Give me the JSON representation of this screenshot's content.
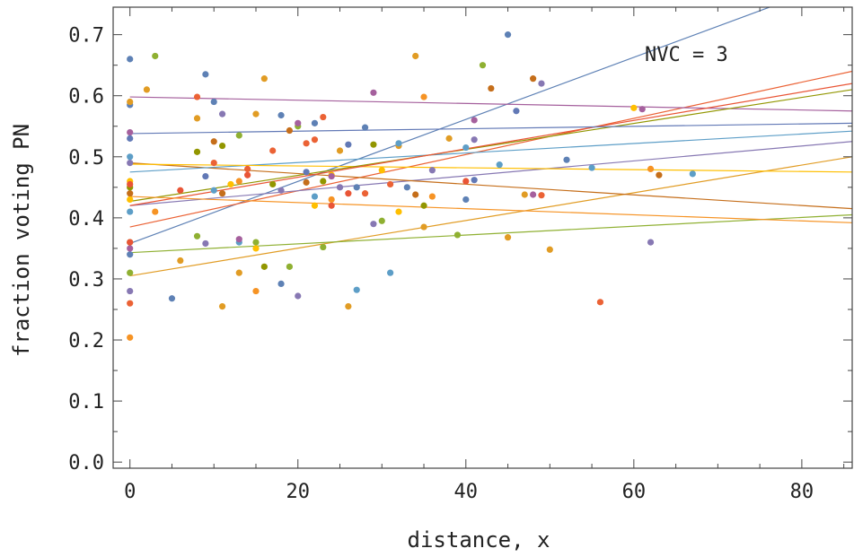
{
  "chart_data": {
    "type": "scatter",
    "xlabel": "distance, x",
    "ylabel": "fraction voting PN",
    "annotation": "NVC = 3",
    "xlim": [
      -2,
      86
    ],
    "ylim": [
      -0.01,
      0.745
    ],
    "x_ticks": [
      0,
      20,
      40,
      60,
      80
    ],
    "y_ticks": [
      0.0,
      0.1,
      0.2,
      0.3,
      0.4,
      0.5,
      0.6,
      0.7
    ],
    "y_tick_labels": [
      "0.0",
      "0.1",
      "0.2",
      "0.3",
      "0.4",
      "0.5",
      "0.6",
      "0.7"
    ],
    "grid": false,
    "series": [
      {
        "color": "#5e81b5",
        "points": [
          [
            0,
            0.66
          ],
          [
            0,
            0.585
          ],
          [
            9,
            0.635
          ],
          [
            10,
            0.59
          ],
          [
            18,
            0.568
          ],
          [
            22,
            0.555
          ],
          [
            27,
            0.45
          ],
          [
            33,
            0.45
          ],
          [
            45,
            0.7
          ],
          [
            52,
            0.495
          ],
          [
            5,
            0.268
          ],
          [
            18,
            0.292
          ],
          [
            0,
            0.34
          ],
          [
            28,
            0.548
          ],
          [
            40,
            0.43
          ]
        ],
        "trend": [
          [
            0,
            0.358
          ],
          [
            86,
            0.795
          ]
        ]
      },
      {
        "color": "#e19c24",
        "points": [
          [
            0,
            0.59
          ],
          [
            2,
            0.61
          ],
          [
            16,
            0.628
          ],
          [
            8,
            0.563
          ],
          [
            15,
            0.57
          ],
          [
            25,
            0.51
          ],
          [
            32,
            0.518
          ],
          [
            34,
            0.665
          ],
          [
            38,
            0.53
          ],
          [
            47,
            0.438
          ],
          [
            50,
            0.348
          ],
          [
            6,
            0.33
          ],
          [
            11,
            0.255
          ],
          [
            26,
            0.255
          ],
          [
            13,
            0.31
          ],
          [
            35,
            0.385
          ],
          [
            45,
            0.368
          ]
        ],
        "trend": [
          [
            0,
            0.305
          ],
          [
            86,
            0.5
          ]
        ]
      },
      {
        "color": "#8fb032",
        "points": [
          [
            3,
            0.665
          ],
          [
            13,
            0.535
          ],
          [
            20,
            0.55
          ],
          [
            30,
            0.395
          ],
          [
            39,
            0.372
          ],
          [
            42,
            0.65
          ],
          [
            0,
            0.31
          ],
          [
            8,
            0.37
          ],
          [
            15,
            0.36
          ],
          [
            19,
            0.32
          ],
          [
            23,
            0.352
          ]
        ],
        "trend": [
          [
            0,
            0.343
          ],
          [
            86,
            0.405
          ]
        ]
      },
      {
        "color": "#eb6235",
        "points": [
          [
            8,
            0.598
          ],
          [
            21,
            0.522
          ],
          [
            22,
            0.528
          ],
          [
            23,
            0.565
          ],
          [
            10,
            0.49
          ],
          [
            17,
            0.51
          ],
          [
            0,
            0.26
          ],
          [
            14,
            0.48
          ],
          [
            28,
            0.44
          ],
          [
            31,
            0.455
          ],
          [
            56,
            0.262
          ],
          [
            49,
            0.437
          ]
        ],
        "trend": [
          [
            0,
            0.385
          ],
          [
            86,
            0.64
          ]
        ]
      },
      {
        "color": "#8778b3",
        "points": [
          [
            0,
            0.49
          ],
          [
            11,
            0.57
          ],
          [
            20,
            0.272
          ],
          [
            29,
            0.39
          ],
          [
            36,
            0.478
          ],
          [
            0,
            0.28
          ],
          [
            9,
            0.358
          ],
          [
            18,
            0.445
          ],
          [
            25,
            0.45
          ],
          [
            41,
            0.528
          ],
          [
            49,
            0.62
          ],
          [
            62,
            0.36
          ]
        ],
        "trend": [
          [
            0,
            0.42
          ],
          [
            86,
            0.525
          ]
        ]
      },
      {
        "color": "#c56e1a",
        "points": [
          [
            10,
            0.525
          ],
          [
            19,
            0.543
          ],
          [
            11,
            0.44
          ],
          [
            21,
            0.458
          ],
          [
            34,
            0.438
          ],
          [
            0,
            0.44
          ],
          [
            48,
            0.628
          ],
          [
            63,
            0.47
          ],
          [
            43,
            0.612
          ]
        ],
        "trend": [
          [
            0,
            0.49
          ],
          [
            86,
            0.415
          ]
        ]
      },
      {
        "color": "#5d9ec7",
        "points": [
          [
            0,
            0.5
          ],
          [
            10,
            0.445
          ],
          [
            13,
            0.36
          ],
          [
            22,
            0.435
          ],
          [
            32,
            0.522
          ],
          [
            40,
            0.515
          ],
          [
            55,
            0.482
          ],
          [
            67,
            0.472
          ],
          [
            0,
            0.41
          ],
          [
            27,
            0.282
          ],
          [
            31,
            0.31
          ],
          [
            44,
            0.487
          ]
        ],
        "trend": [
          [
            0,
            0.475
          ],
          [
            86,
            0.542
          ]
        ]
      },
      {
        "color": "#ffbf00",
        "points": [
          [
            0,
            0.46
          ],
          [
            12,
            0.455
          ],
          [
            22,
            0.42
          ],
          [
            32,
            0.41
          ],
          [
            0,
            0.43
          ],
          [
            15,
            0.35
          ],
          [
            24,
            0.47
          ],
          [
            60,
            0.58
          ],
          [
            30,
            0.478
          ]
        ],
        "trend": [
          [
            0,
            0.488
          ],
          [
            86,
            0.475
          ]
        ]
      },
      {
        "color": "#a5609d",
        "points": [
          [
            0,
            0.54
          ],
          [
            20,
            0.555
          ],
          [
            29,
            0.605
          ],
          [
            41,
            0.56
          ],
          [
            61,
            0.578
          ],
          [
            0,
            0.35
          ],
          [
            13,
            0.365
          ],
          [
            24,
            0.468
          ],
          [
            48,
            0.438
          ]
        ],
        "trend": [
          [
            0,
            0.598
          ],
          [
            86,
            0.575
          ]
        ]
      },
      {
        "color": "#929600",
        "points": [
          [
            0,
            0.45
          ],
          [
            8,
            0.508
          ],
          [
            11,
            0.518
          ],
          [
            17,
            0.455
          ],
          [
            23,
            0.46
          ],
          [
            0,
            0.36
          ],
          [
            16,
            0.32
          ],
          [
            35,
            0.42
          ],
          [
            29,
            0.52
          ]
        ],
        "trend": [
          [
            0,
            0.427
          ],
          [
            86,
            0.61
          ]
        ]
      },
      {
        "color": "#e95536",
        "points": [
          [
            0,
            0.455
          ],
          [
            6,
            0.445
          ],
          [
            14,
            0.47
          ],
          [
            24,
            0.42
          ],
          [
            40,
            0.46
          ],
          [
            26,
            0.44
          ],
          [
            0,
            0.36
          ]
        ],
        "trend": [
          [
            0,
            0.42
          ],
          [
            86,
            0.62
          ]
        ]
      },
      {
        "color": "#6279b6",
        "points": [
          [
            0,
            0.53
          ],
          [
            9,
            0.468
          ],
          [
            21,
            0.475
          ],
          [
            26,
            0.52
          ],
          [
            41,
            0.462
          ],
          [
            46,
            0.575
          ]
        ],
        "trend": [
          [
            0,
            0.538
          ],
          [
            86,
            0.555
          ]
        ]
      },
      {
        "color": "#f69324",
        "points": [
          [
            0,
            0.204
          ],
          [
            3,
            0.41
          ],
          [
            13,
            0.46
          ],
          [
            24,
            0.43
          ],
          [
            36,
            0.435
          ],
          [
            62,
            0.48
          ],
          [
            35,
            0.598
          ],
          [
            15,
            0.28
          ]
        ],
        "trend": [
          [
            0,
            0.435
          ],
          [
            86,
            0.392
          ]
        ]
      }
    ]
  }
}
